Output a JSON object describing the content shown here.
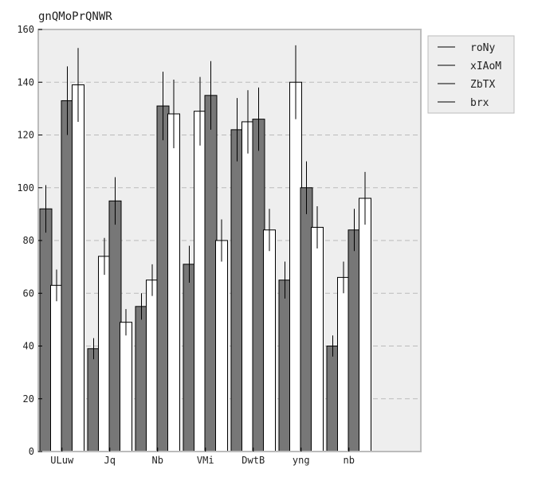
{
  "chart_data": {
    "type": "bar",
    "title": "gnQMoPrQNWR",
    "xlabel": "",
    "ylabel": "",
    "categories": [
      "ULuw",
      "Jq",
      "Nb",
      "VMi",
      "DwtB",
      "yng",
      "nb"
    ],
    "series": [
      {
        "name": "roNy",
        "color": "#777777",
        "values": [
          92,
          39,
          55,
          71,
          122,
          65,
          40
        ],
        "errors": [
          9,
          4,
          5,
          7,
          12,
          7,
          4
        ]
      },
      {
        "name": "xIAoM",
        "color": "#ffffff",
        "values": [
          63,
          74,
          65,
          129,
          125,
          140,
          66
        ],
        "errors": [
          6,
          7,
          6,
          13,
          12,
          14,
          6
        ]
      },
      {
        "name": "ZbTX",
        "color": "#777777",
        "values": [
          133,
          95,
          131,
          135,
          126,
          100,
          84
        ],
        "errors": [
          13,
          9,
          13,
          13,
          12,
          10,
          8
        ]
      },
      {
        "name": "brx",
        "color": "#ffffff",
        "values": [
          139,
          49,
          128,
          80,
          84,
          85,
          96
        ],
        "errors": [
          14,
          5,
          13,
          8,
          8,
          8,
          10
        ]
      }
    ],
    "ylim": [
      0,
      160
    ],
    "yticks": [
      0,
      20,
      40,
      60,
      80,
      100,
      120,
      140,
      160
    ],
    "grid": true,
    "legend_position": "outside-right-top",
    "colors": {
      "axes_bg": "#eeeeee",
      "grid": "#bbbbbb",
      "frame": "#bcbcbc",
      "bar_edge": "#000000",
      "text": "#222222"
    }
  }
}
